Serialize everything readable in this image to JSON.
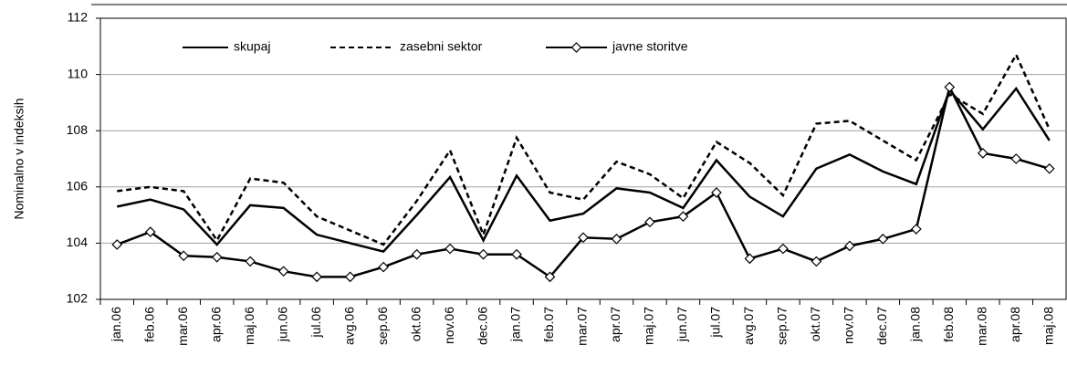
{
  "chart_data": {
    "type": "line",
    "y_label": "Nominalno v indeksih",
    "categories": [
      "jan.06",
      "feb.06",
      "mar.06",
      "apr.06",
      "maj.06",
      "jun.06",
      "jul.06",
      "avg.06",
      "sep.06",
      "okt.06",
      "nov.06",
      "dec.06",
      "jan.07",
      "feb.07",
      "mar.07",
      "apr.07",
      "maj.07",
      "jun.07",
      "jul.07",
      "avg.07",
      "sep.07",
      "okt.07",
      "nov.07",
      "dec.07",
      "jan.08",
      "feb.08",
      "mar.08",
      "apr.08",
      "maj.08"
    ],
    "series": [
      {
        "name": "skupaj",
        "color": "#000000",
        "dash": "solid",
        "marker": "none",
        "values": [
          105.3,
          105.55,
          105.2,
          103.95,
          105.35,
          105.25,
          104.3,
          104.0,
          103.7,
          105.0,
          106.35,
          104.1,
          106.4,
          104.8,
          105.05,
          105.95,
          105.8,
          105.25,
          106.95,
          105.65,
          104.95,
          106.65,
          107.15,
          106.55,
          106.1,
          109.45,
          108.05,
          109.5,
          107.65
        ]
      },
      {
        "name": "zasebni sektor",
        "color": "#000000",
        "dash": "dashed",
        "marker": "none",
        "values": [
          105.85,
          106.0,
          105.85,
          104.1,
          106.3,
          106.15,
          104.95,
          104.45,
          103.95,
          105.5,
          107.3,
          104.3,
          107.75,
          105.8,
          105.55,
          106.9,
          106.45,
          105.6,
          107.6,
          106.85,
          105.7,
          108.25,
          108.35,
          107.65,
          106.95,
          109.3,
          108.6,
          110.7,
          108.05
        ]
      },
      {
        "name": "javne storitve",
        "color": "#000000",
        "dash": "solid",
        "marker": "diamond",
        "values": [
          103.95,
          104.4,
          103.55,
          103.5,
          103.35,
          103.0,
          102.8,
          102.8,
          103.15,
          103.6,
          103.8,
          103.6,
          103.6,
          102.8,
          104.2,
          104.15,
          104.75,
          104.95,
          105.8,
          103.45,
          103.8,
          103.35,
          103.9,
          104.15,
          104.5,
          109.55,
          107.2,
          107.0,
          106.65
        ]
      }
    ],
    "ylim": [
      102,
      112
    ],
    "yticks": [
      102,
      104,
      106,
      108,
      110,
      112
    ],
    "grid": true,
    "legend": "top"
  }
}
